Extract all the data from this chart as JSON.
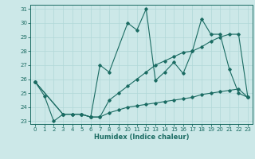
{
  "xlabel": "Humidex (Indice chaleur)",
  "xlim": [
    -0.5,
    23.5
  ],
  "ylim": [
    22.8,
    31.3
  ],
  "xticks": [
    0,
    1,
    2,
    3,
    4,
    5,
    6,
    7,
    8,
    9,
    10,
    11,
    12,
    13,
    14,
    15,
    16,
    17,
    18,
    19,
    20,
    21,
    22,
    23
  ],
  "yticks": [
    23,
    24,
    25,
    26,
    27,
    28,
    29,
    30,
    31
  ],
  "bg_color": "#cce8e8",
  "line_color": "#1a6b62",
  "grid_color": "#b0d8d8",
  "line1_x": [
    0,
    1,
    2,
    3,
    4,
    5,
    6,
    7,
    8,
    10,
    11,
    12,
    13,
    14,
    15,
    16,
    17,
    18,
    19,
    20,
    21,
    22,
    23
  ],
  "line1_y": [
    25.8,
    24.8,
    23.0,
    23.5,
    23.5,
    23.5,
    23.3,
    27.0,
    26.5,
    30.0,
    29.5,
    31.0,
    25.9,
    26.5,
    27.2,
    26.4,
    28.0,
    30.3,
    29.2,
    29.2,
    26.7,
    25.0,
    24.7
  ],
  "line2_x": [
    0,
    3,
    4,
    5,
    6,
    7,
    8,
    9,
    10,
    11,
    12,
    13,
    14,
    15,
    16,
    17,
    18,
    19,
    20,
    21,
    22,
    23
  ],
  "line2_y": [
    25.8,
    23.5,
    23.5,
    23.5,
    23.3,
    23.3,
    24.5,
    25.0,
    25.5,
    26.0,
    26.5,
    27.0,
    27.3,
    27.6,
    27.9,
    28.0,
    28.3,
    28.7,
    29.0,
    29.2,
    29.2,
    24.7
  ],
  "line3_x": [
    0,
    3,
    4,
    5,
    6,
    7,
    8,
    9,
    10,
    11,
    12,
    13,
    14,
    15,
    16,
    17,
    18,
    19,
    20,
    21,
    22,
    23
  ],
  "line3_y": [
    25.8,
    23.5,
    23.5,
    23.5,
    23.3,
    23.3,
    23.6,
    23.8,
    24.0,
    24.1,
    24.2,
    24.3,
    24.4,
    24.5,
    24.6,
    24.7,
    24.9,
    25.0,
    25.1,
    25.2,
    25.3,
    24.7
  ],
  "tick_fontsize": 5.0,
  "xlabel_fontsize": 6.0
}
